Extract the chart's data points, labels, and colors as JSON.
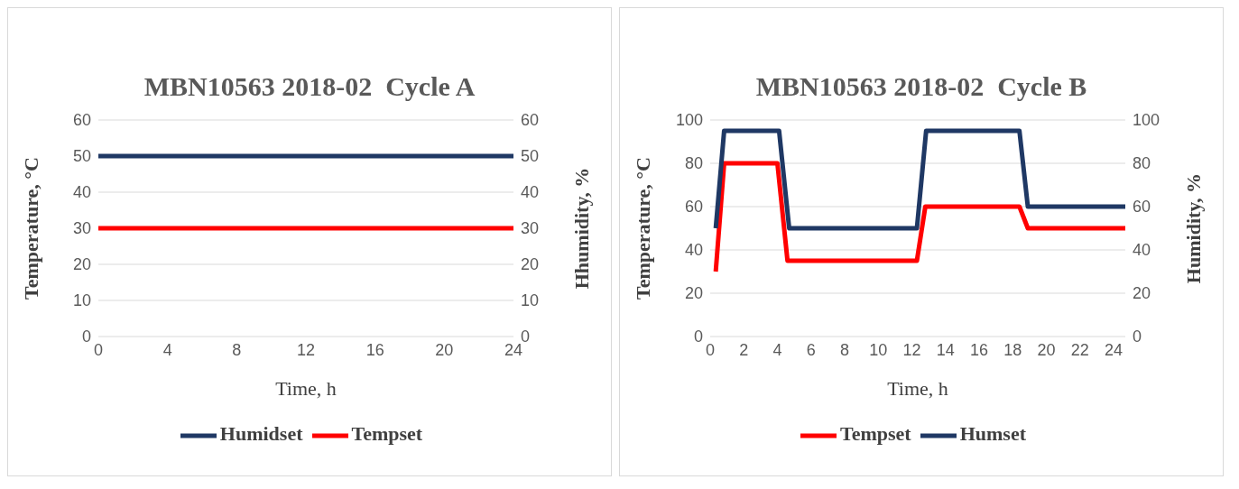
{
  "chart_data": [
    {
      "type": "line",
      "title": "MBN10563 2018-02  Cycle A",
      "xlabel": "Time, h",
      "ylabel": "Temperature, °C",
      "y2label": "Hhumidity, %",
      "x": [
        0,
        24
      ],
      "xlim": [
        0,
        24
      ],
      "xticks": [
        0,
        4,
        8,
        12,
        16,
        20,
        24
      ],
      "ylim": [
        0,
        60
      ],
      "yticks": [
        0,
        10,
        20,
        30,
        40,
        50,
        60
      ],
      "y2lim": [
        0,
        60
      ],
      "y2ticks": [
        0,
        10,
        20,
        30,
        40,
        50,
        60
      ],
      "grid": "y",
      "legend": "bottom",
      "marker": "none",
      "line_style": "solid",
      "series": [
        {
          "name": "Humidset",
          "color": "#1f3864",
          "axis": "y2",
          "values": [
            50,
            50
          ]
        },
        {
          "name": "Tempset",
          "color": "#ff0000",
          "values": [
            30,
            30
          ]
        }
      ]
    },
    {
      "type": "line",
      "title": "MBN10563 2018-02  Cycle B",
      "xlabel": "Time, h",
      "ylabel": "Temperature, °C",
      "y2label": "Humidity, %",
      "xlim": [
        0,
        24.7
      ],
      "xticks": [
        0,
        2,
        4,
        6,
        8,
        10,
        12,
        14,
        16,
        18,
        20,
        22,
        24
      ],
      "ylim": [
        0,
        100
      ],
      "yticks": [
        0,
        20,
        40,
        60,
        80,
        100
      ],
      "y2lim": [
        0,
        100
      ],
      "y2ticks": [
        0,
        20,
        40,
        60,
        80,
        100
      ],
      "grid": "y",
      "legend": "bottom",
      "marker": "none",
      "line_style": "solid",
      "series": [
        {
          "name": "Tempset",
          "color": "#ff0000",
          "x": [
            0.33,
            0.83,
            4.0,
            4.6,
            12.3,
            12.8,
            18.4,
            18.9,
            24.7
          ],
          "values": [
            30,
            80,
            80,
            35,
            35,
            60,
            60,
            50,
            50
          ]
        },
        {
          "name": "Humset",
          "color": "#1f3864",
          "axis": "y2",
          "x": [
            0.33,
            0.83,
            4.1,
            4.7,
            12.3,
            12.85,
            18.4,
            18.9,
            24.7
          ],
          "values": [
            50,
            95,
            95,
            50,
            50,
            95,
            95,
            60,
            60
          ]
        }
      ]
    }
  ]
}
